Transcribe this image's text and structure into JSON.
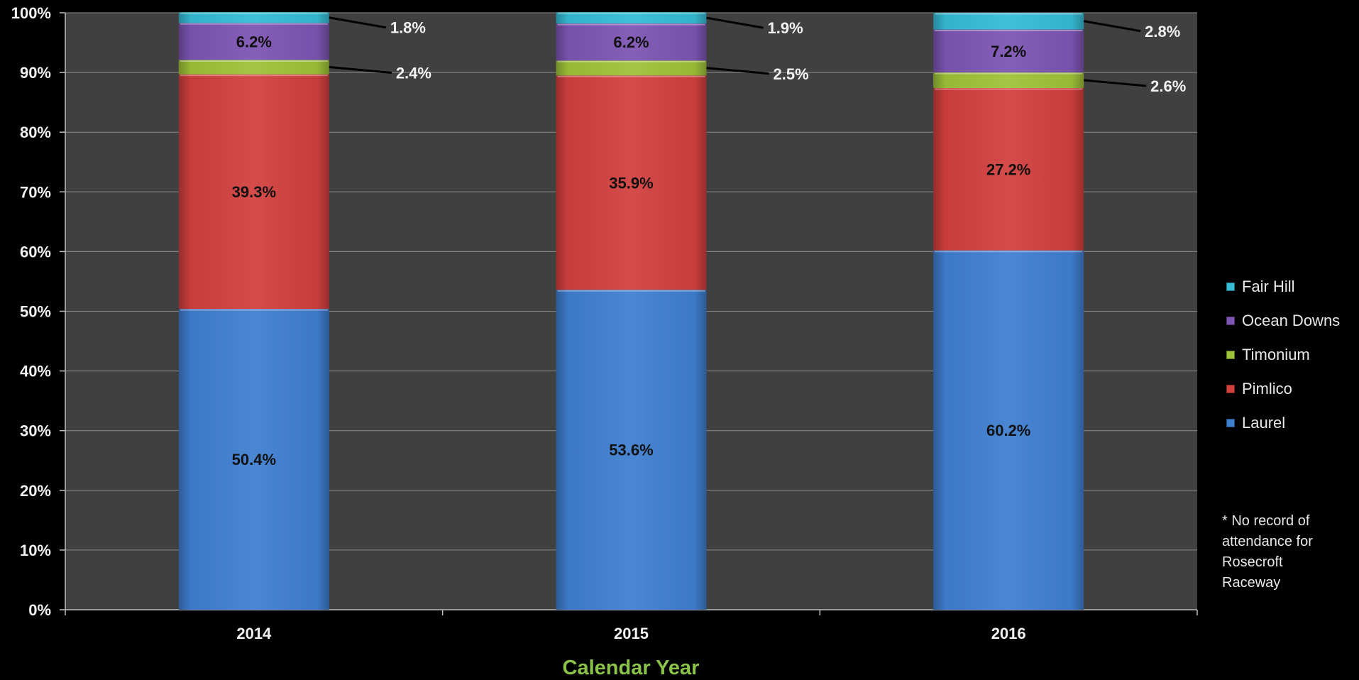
{
  "chart_data": {
    "type": "bar",
    "stacked": true,
    "percent": true,
    "categories": [
      "2014",
      "2015",
      "2016"
    ],
    "series": [
      {
        "name": "Laurel",
        "color": "#3f7fd0",
        "values": [
          50.4,
          53.6,
          60.2
        ],
        "labels": [
          "50.4%",
          "53.6%",
          "60.2%"
        ]
      },
      {
        "name": "Pimlico",
        "color": "#d2403e",
        "values": [
          39.3,
          35.9,
          27.2
        ],
        "labels": [
          "39.3%",
          "35.9%",
          "27.2%"
        ]
      },
      {
        "name": "Timonium",
        "color": "#9ec238",
        "values": [
          2.4,
          2.5,
          2.6
        ],
        "labels": [
          "2.4%",
          "2.5%",
          "2.6%"
        ]
      },
      {
        "name": "Ocean Downs",
        "color": "#7d55b3",
        "values": [
          6.2,
          6.2,
          7.2
        ],
        "labels": [
          "6.2%",
          "6.2%",
          "7.2%"
        ]
      },
      {
        "name": "Fair Hill",
        "color": "#36bcd5",
        "values": [
          1.8,
          1.9,
          2.8
        ],
        "labels": [
          "1.8%",
          "1.9%",
          "2.8%"
        ]
      }
    ],
    "ylim": [
      0,
      100
    ],
    "yticks": [
      "0%",
      "10%",
      "20%",
      "30%",
      "40%",
      "50%",
      "60%",
      "70%",
      "80%",
      "90%",
      "100%"
    ],
    "xlabel": "Calendar Year",
    "ylabel": "",
    "title": "",
    "grid": true,
    "legend_position": "right",
    "plot_background": "#404040",
    "xlabel_color": "#8bc34a"
  },
  "note": "* No record of\nattendance for\nRosecroft\nRaceway"
}
